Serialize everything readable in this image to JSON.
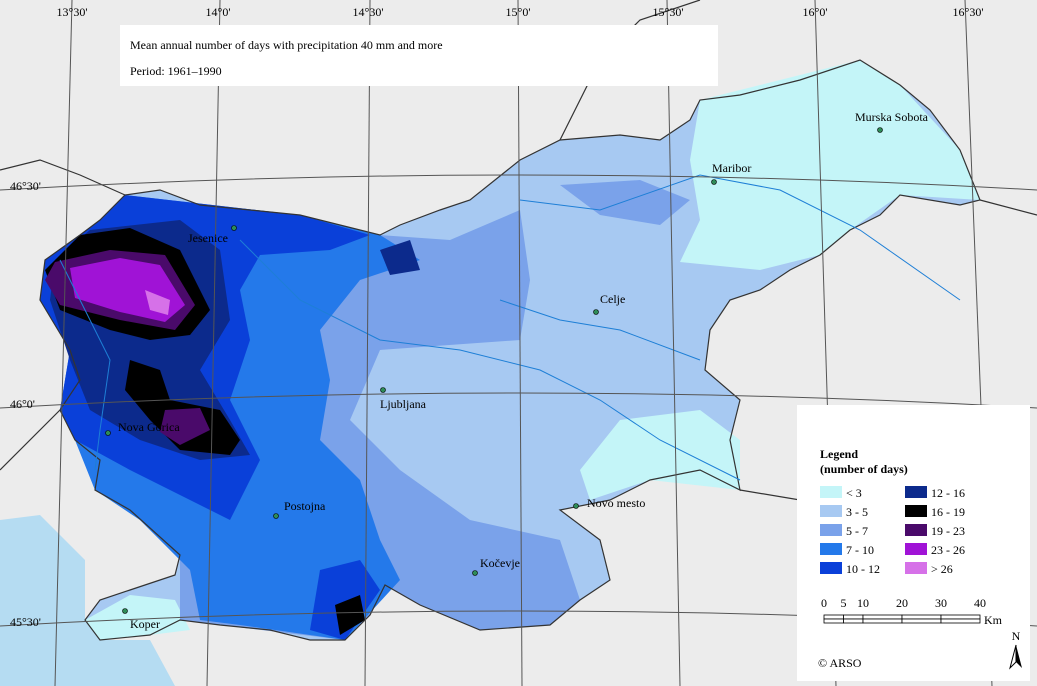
{
  "title": [
    "Mean annual number of days with precipitation 40 mm and more",
    "Period: 1961–1990"
  ],
  "longitudes": [
    "13°30'",
    "14°0'",
    "14°30'",
    "15°0'",
    "15°30'",
    "16°0'",
    "16°30'"
  ],
  "latitudes": [
    "46°30'",
    "46°0'",
    "45°30'"
  ],
  "cities": [
    "Murska Sobota",
    "Maribor",
    "Jesenice",
    "Celje",
    "Ljubljana",
    "Nova Gorica",
    "Novo mesto",
    "Postojna",
    "Kočevje",
    "Koper"
  ],
  "legend": {
    "title": "Legend",
    "subtitle": "(number of days)",
    "items": [
      {
        "label": "< 3",
        "color": "#c4f5f8"
      },
      {
        "label": "3 - 5",
        "color": "#a7c9f2"
      },
      {
        "label": "5 - 7",
        "color": "#7aa2ea"
      },
      {
        "label": "7 - 10",
        "color": "#2479ea"
      },
      {
        "label": "10 - 12",
        "color": "#0a40d9"
      },
      {
        "label": "12 - 16",
        "color": "#0c2a8c"
      },
      {
        "label": "16 - 19",
        "color": "#000000"
      },
      {
        "label": "19 - 23",
        "color": "#4a0a6a"
      },
      {
        "label": "23 - 26",
        "color": "#a013d6"
      },
      {
        "label": "> 26",
        "color": "#d671e8"
      }
    ]
  },
  "scale": {
    "ticks": [
      0,
      5,
      10,
      20,
      30,
      40
    ],
    "unit": "Km"
  },
  "north": "N",
  "copyright": "© ARSO"
}
